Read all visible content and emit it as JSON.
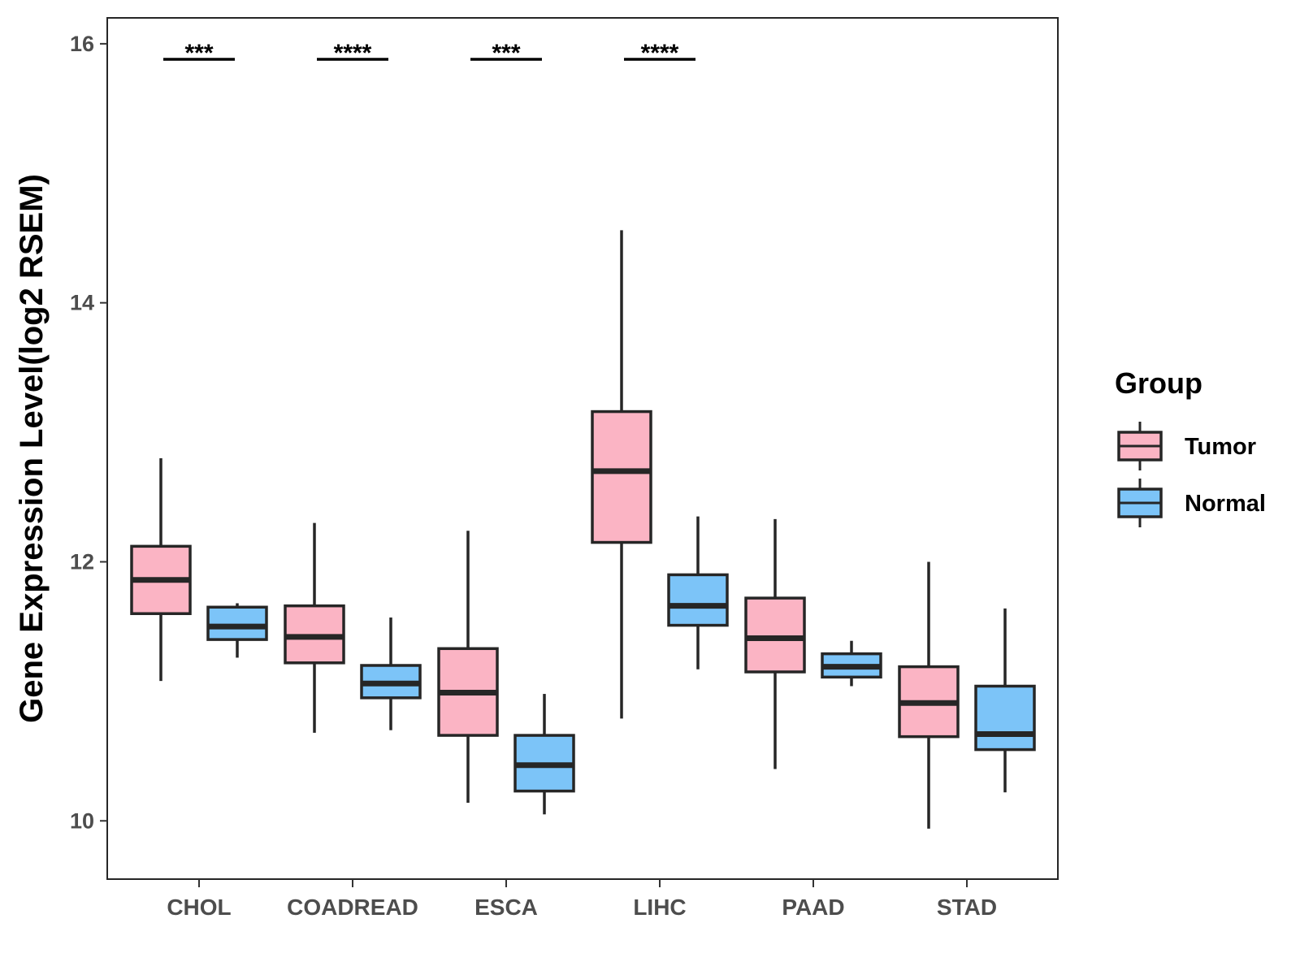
{
  "chart_data": {
    "type": "boxplot",
    "title": "",
    "xlabel": "",
    "ylabel": "Gene Expression Level(log2 RSEM)",
    "ylim": [
      9.55,
      16.2
    ],
    "yticks": [
      10,
      12,
      14,
      16
    ],
    "categories": [
      "CHOL",
      "COADREAD",
      "ESCA",
      "LIHC",
      "PAAD",
      "STAD"
    ],
    "legend": {
      "title": "Group",
      "position": "right",
      "entries": [
        {
          "name": "Tumor",
          "color": "#fbb4c4"
        },
        {
          "name": "Normal",
          "color": "#7cc4f8"
        }
      ]
    },
    "series": [
      {
        "name": "Tumor",
        "color": "#fbb4c4",
        "boxes": [
          {
            "whisker_low": 11.08,
            "q1": 11.6,
            "median": 11.86,
            "q3": 12.12,
            "whisker_high": 12.8
          },
          {
            "whisker_low": 10.68,
            "q1": 11.22,
            "median": 11.42,
            "q3": 11.66,
            "whisker_high": 12.3
          },
          {
            "whisker_low": 10.14,
            "q1": 10.66,
            "median": 10.99,
            "q3": 11.33,
            "whisker_high": 12.24
          },
          {
            "whisker_low": 10.79,
            "q1": 12.15,
            "median": 12.7,
            "q3": 13.16,
            "whisker_high": 14.56
          },
          {
            "whisker_low": 10.4,
            "q1": 11.15,
            "median": 11.41,
            "q3": 11.72,
            "whisker_high": 12.33
          },
          {
            "whisker_low": 9.94,
            "q1": 10.65,
            "median": 10.91,
            "q3": 11.19,
            "whisker_high": 12.0
          }
        ]
      },
      {
        "name": "Normal",
        "color": "#7cc4f8",
        "boxes": [
          {
            "whisker_low": 11.26,
            "q1": 11.4,
            "median": 11.5,
            "q3": 11.65,
            "whisker_high": 11.68
          },
          {
            "whisker_low": 10.7,
            "q1": 10.95,
            "median": 11.06,
            "q3": 11.2,
            "whisker_high": 11.57
          },
          {
            "whisker_low": 10.05,
            "q1": 10.23,
            "median": 10.43,
            "q3": 10.66,
            "whisker_high": 10.98
          },
          {
            "whisker_low": 11.17,
            "q1": 11.51,
            "median": 11.66,
            "q3": 11.9,
            "whisker_high": 12.35
          },
          {
            "whisker_low": 11.04,
            "q1": 11.11,
            "median": 11.19,
            "q3": 11.29,
            "whisker_high": 11.39
          },
          {
            "whisker_low": 10.22,
            "q1": 10.55,
            "median": 10.67,
            "q3": 11.04,
            "whisker_high": 11.64
          }
        ]
      }
    ],
    "significance": [
      {
        "category": "CHOL",
        "label": "***"
      },
      {
        "category": "COADREAD",
        "label": "****"
      },
      {
        "category": "ESCA",
        "label": "***"
      },
      {
        "category": "LIHC",
        "label": "****"
      }
    ],
    "significance_level": 15.88
  }
}
